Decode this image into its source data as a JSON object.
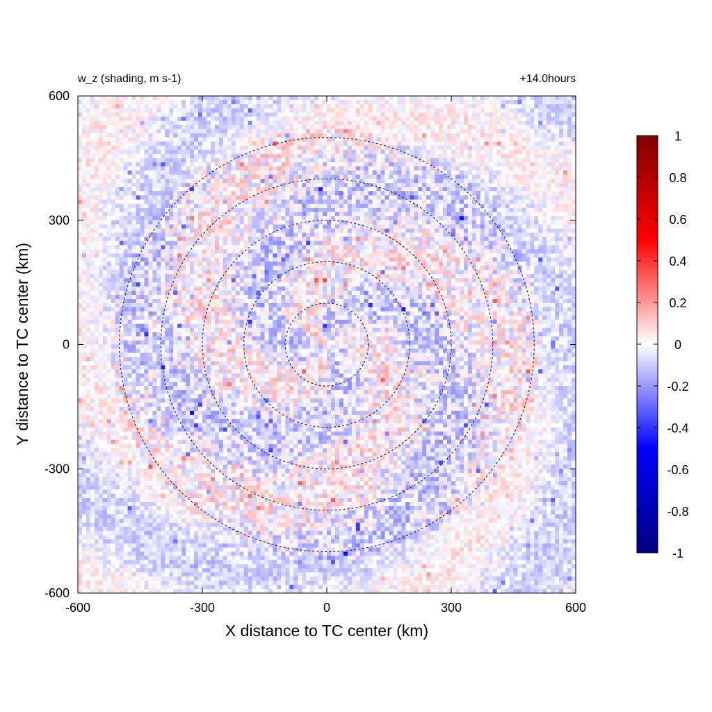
{
  "chart_data": {
    "type": "heatmap",
    "title_left": "w_z (shading, m s-1)",
    "title_right": "+14.0hours",
    "xlabel": "X distance to TC center (km)",
    "ylabel": "Y distance to TC center (km)",
    "xlim": [
      -600,
      600
    ],
    "ylim": [
      -600,
      600
    ],
    "xticks": [
      "-600",
      "-300",
      "0",
      "300",
      "600"
    ],
    "yticks": [
      "-600",
      "-300",
      "0",
      "300",
      "600"
    ],
    "range_circles_km": [
      100,
      200,
      300,
      400,
      500
    ],
    "circle_style": "dashed",
    "colorbar": {
      "min": -1,
      "max": 1,
      "ticks": [
        "1",
        "0.8",
        "0.6",
        "0.4",
        "0.2",
        "0",
        "-0.2",
        "-0.4",
        "-0.6",
        "-0.8",
        "-1"
      ],
      "colormap": "blue-white-red",
      "colors": [
        "#000080",
        "#0000ff",
        "#ffffff",
        "#ff0000",
        "#800000"
      ]
    },
    "field_description_values": "small-amplitude noisy vertical velocity, mostly within ±0.3 m s-1"
  }
}
